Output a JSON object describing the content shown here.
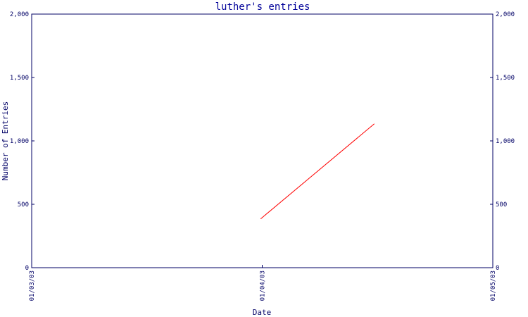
{
  "chart_data": {
    "type": "line",
    "title": "luther's entries",
    "xlabel": "Date",
    "ylabel": "Number of Entries",
    "ylim": [
      0,
      2000
    ],
    "y_ticks": [
      0,
      500,
      1000,
      1500,
      2000
    ],
    "y_tick_labels": [
      "0",
      "500",
      "1,000",
      "1,500",
      "2,000"
    ],
    "x_range": [
      "2003-01-03",
      "2003-01-05"
    ],
    "x_ticks": [
      "2003-01-03",
      "2003-01-04",
      "2003-01-05"
    ],
    "x_tick_labels": [
      "01/03/03",
      "01/04/03",
      "01/05/03"
    ],
    "y_axis_right_mirrored": true,
    "grid": false,
    "series": [
      {
        "color": "#ff0000",
        "points": [
          {
            "x": "2003-01-03 23:50",
            "y": 385
          },
          {
            "x": "2003-01-04 11:40",
            "y": 1135
          }
        ]
      }
    ]
  }
}
